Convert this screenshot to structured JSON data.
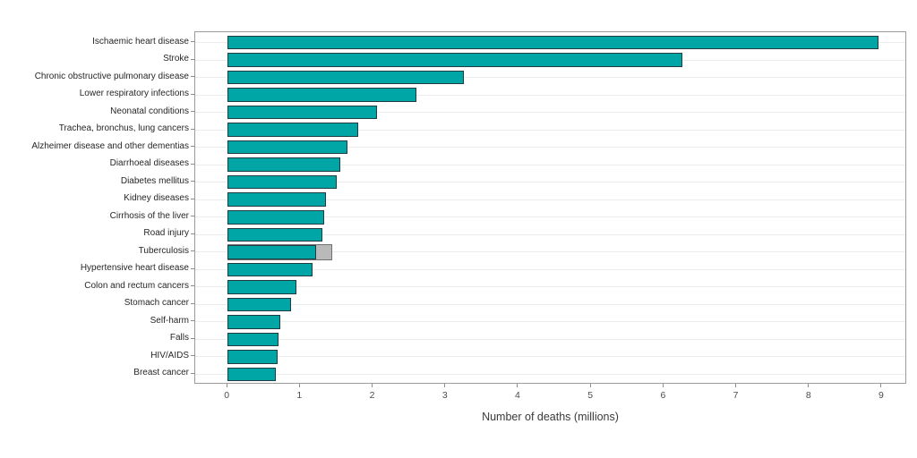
{
  "chart_data": {
    "type": "bar",
    "orientation": "horizontal",
    "title": "",
    "xlabel": "Number of deaths (millions)",
    "ylabel": "",
    "xlim": [
      -0.445,
      9.345
    ],
    "x_ticks": [
      0,
      1,
      2,
      3,
      4,
      5,
      6,
      7,
      8,
      9
    ],
    "grid": "horizontal row gridlines only",
    "legend": "none",
    "categories": [
      "Ischaemic heart disease",
      "Stroke",
      "Chronic obstructive pulmonary disease",
      "Lower respiratory infections",
      "Neonatal conditions",
      "Trachea, bronchus, lung cancers",
      "Alzheimer disease and other dementias",
      "Diarrhoeal diseases",
      "Diabetes mellitus",
      "Kidney diseases",
      "Cirrhosis of the liver",
      "Road injury",
      "Tuberculosis",
      "Hypertensive heart disease",
      "Colon and rectum cancers",
      "Stomach cancer",
      "Self-harm",
      "Falls",
      "HIV/AIDS",
      "Breast cancer"
    ],
    "values": [
      8.95,
      6.25,
      3.25,
      2.6,
      2.05,
      1.8,
      1.65,
      1.55,
      1.5,
      1.35,
      1.33,
      1.3,
      1.22,
      1.17,
      0.95,
      0.87,
      0.73,
      0.7,
      0.69,
      0.66
    ],
    "grey_overlay_bar": {
      "category": "Tuberculosis",
      "category_index": 12,
      "value": 1.44
    },
    "colors": {
      "bar_fill": "#00a6a6",
      "bar_border": "#1e3c42",
      "grey_bar_fill": "#b9b9b9",
      "grey_bar_border": "#707070",
      "gridline": "#ececec",
      "plot_border": "#9b9b9b",
      "tick_mark": "#8c8c8c",
      "category_text": "#262626",
      "tick_text": "#4d4d4d",
      "axis_title_text": "#3a3a3a",
      "background": "#ffffff"
    }
  }
}
